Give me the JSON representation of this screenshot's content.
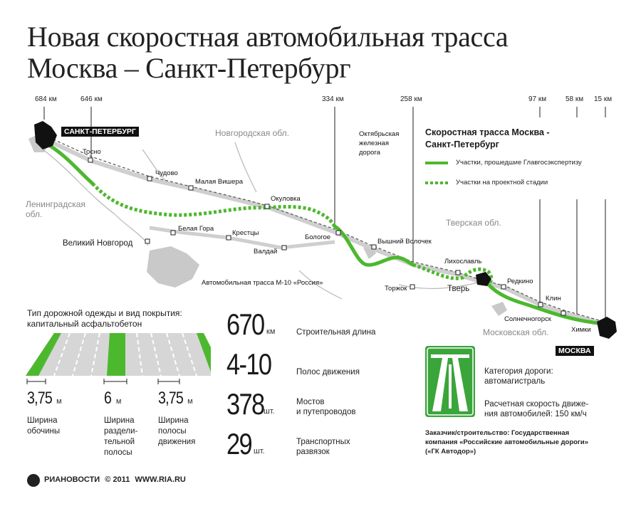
{
  "title": {
    "line1": "Новая скоростная автомобильная трасса",
    "line2": "Москва – Санкт-Петербург"
  },
  "km_markers": [
    "684 км",
    "646 км",
    "334 км",
    "258 км",
    "97 км",
    "58 км",
    "15 км"
  ],
  "map": {
    "spb_label": "САНКТ-ПЕТЕРБУРГ",
    "moscow_label": "МОСКВА",
    "regions": {
      "novgorod": "Новгородская обл.",
      "leningrad_1": "Ленинградская",
      "leningrad_2": "обл.",
      "tver": "Тверская обл.",
      "moscow": "Московская обл."
    },
    "railway": {
      "line1": "Октябрьская",
      "line2": "железная",
      "line3": "дорога"
    },
    "m10_label": "Автомобильная трасса М-10 «Россия»",
    "cities": {
      "tosno": "Тосно",
      "chudovo": "Чудово",
      "malaya_vishera": "Малая Вишера",
      "okulovka": "Окуловка",
      "belaya_gora": "Белая Гора",
      "kresttsy": "Крестцы",
      "bologoe": "Бологое",
      "veliky_novgorod": "Великий Новгород",
      "valdai": "Валдай",
      "vyshny_volochek": "Вышний Волочек",
      "likhoslavl": "Лихославль",
      "torzhok": "Торжок",
      "tver": "Тверь",
      "redkino": "Редкино",
      "klin": "Клин",
      "solnechnogorsk": "Солнечногорск",
      "khimki": "Химки"
    }
  },
  "legend": {
    "title_line1": "Скоростная трасса Москва -",
    "title_line2": "Санкт-Петербург",
    "approved": "Участки, прошедшие Главгосэкспертизу",
    "design": "Участки на проектной стадии"
  },
  "pavement": {
    "title_line1": "Тип дорожной одежды и вид покрытия:",
    "title_line2": "капитальный асфальтобетон",
    "widths": [
      {
        "value": "3,75",
        "unit": "м",
        "label_lines": [
          "Ширина",
          "обочины"
        ]
      },
      {
        "value": "6",
        "unit": "м",
        "label_lines": [
          "Ширина",
          "раздели-",
          "тельной",
          "полосы"
        ]
      },
      {
        "value": "3,75",
        "unit": "м",
        "label_lines": [
          "Ширина",
          "полосы",
          "движения"
        ]
      }
    ]
  },
  "stats": [
    {
      "value": "670",
      "unit": "км",
      "label_lines": [
        "Строительная длина"
      ]
    },
    {
      "value": "4-10",
      "unit": "",
      "label_lines": [
        "Полос движения"
      ]
    },
    {
      "value": "378",
      "unit": "шт.",
      "label_lines": [
        "Мостов",
        "и путепроводов"
      ]
    },
    {
      "value": "29",
      "unit": "шт.",
      "label_lines": [
        "Транспортных",
        "развязок"
      ]
    }
  ],
  "category": {
    "line1": "Категория дороги:",
    "line2": "автомагистраль",
    "speed_line1": "Расчетная скорость движе-",
    "speed_line2": "ния автомобилей: 150 км/ч"
  },
  "customer": {
    "line1": "Заказчик/строительство: Государственная",
    "line2": "компания «Российские автомобильные дороги»",
    "line3": "(«ГК Автодор»)"
  },
  "footer": {
    "brand": "РИАНОВОСТИ",
    "copyright": "© 2011",
    "site": "WWW.RIA.RU"
  },
  "colors": {
    "road_green": "#4cb82e",
    "map_gray": "#c8c8c8",
    "sign_green": "#3aa53a"
  }
}
